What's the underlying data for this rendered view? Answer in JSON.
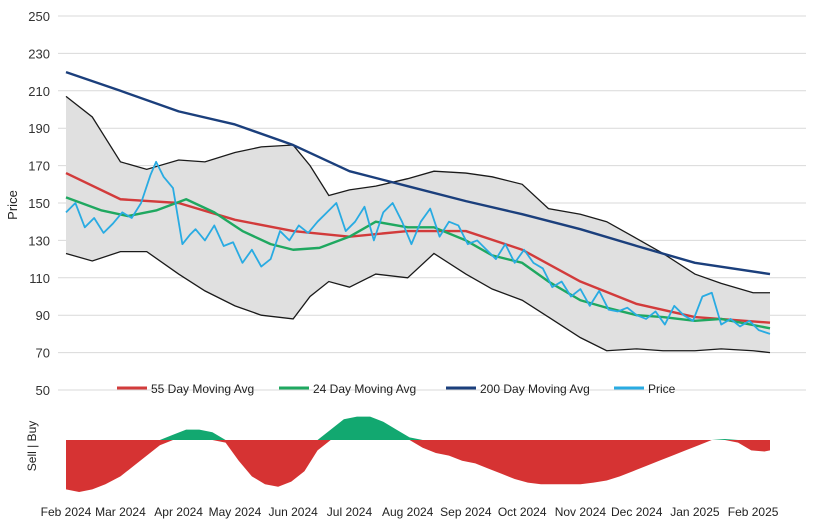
{
  "chart_data": [
    {
      "type": "line",
      "ylabel": "Price",
      "ylim": [
        50,
        250
      ],
      "yticks": [
        50,
        70,
        90,
        110,
        130,
        150,
        170,
        190,
        210,
        230,
        250
      ],
      "x_ticks": [
        "Feb 2024",
        "Mar 2024",
        "Apr 2024",
        "May 2024",
        "Jun 2024",
        "Jul 2024",
        "Aug 2024",
        "Sep 2024",
        "Oct 2024",
        "Nov 2024",
        "Dec 2024",
        "Jan 2025",
        "Feb 2025"
      ],
      "grid": true,
      "legend_position": "bottom",
      "band": {
        "x": [
          "2024-02-01",
          "2024-02-15",
          "2024-03-01",
          "2024-03-15",
          "2024-04-01",
          "2024-04-15",
          "2024-05-01",
          "2024-05-15",
          "2024-06-01",
          "2024-06-10",
          "2024-06-20",
          "2024-07-01",
          "2024-07-15",
          "2024-08-01",
          "2024-08-15",
          "2024-09-01",
          "2024-09-15",
          "2024-10-01",
          "2024-10-15",
          "2024-11-01",
          "2024-11-15",
          "2024-12-01",
          "2024-12-15",
          "2025-01-01",
          "2025-01-15",
          "2025-02-01",
          "2025-02-10"
        ],
        "upper": [
          207,
          196,
          172,
          168,
          173,
          172,
          177,
          180,
          181,
          170,
          154,
          157,
          159,
          163,
          167,
          166,
          164,
          160,
          147,
          144,
          140,
          131,
          123,
          112,
          107,
          102,
          102
        ],
        "lower": [
          123,
          119,
          124,
          124,
          112,
          103,
          95,
          90,
          88,
          100,
          108,
          105,
          112,
          110,
          123,
          112,
          104,
          98,
          89,
          78,
          71,
          72,
          71,
          71,
          72,
          71,
          70
        ]
      },
      "series": [
        {
          "name": "55 Day Moving Avg",
          "color": "#d23b3b",
          "x": [
            "2024-02-01",
            "2024-03-01",
            "2024-04-01",
            "2024-05-01",
            "2024-06-01",
            "2024-07-01",
            "2024-08-01",
            "2024-09-01",
            "2024-10-01",
            "2024-11-01",
            "2024-12-01",
            "2025-01-01",
            "2025-02-10"
          ],
          "y": [
            166,
            152,
            150,
            141,
            135,
            132,
            135,
            135,
            125,
            108,
            96,
            89,
            86
          ]
        },
        {
          "name": "24 Day Moving Avg",
          "color": "#1fa860",
          "x": [
            "2024-02-01",
            "2024-02-20",
            "2024-03-05",
            "2024-03-20",
            "2024-04-05",
            "2024-04-20",
            "2024-05-05",
            "2024-05-20",
            "2024-06-01",
            "2024-06-15",
            "2024-07-01",
            "2024-07-15",
            "2024-08-01",
            "2024-08-15",
            "2024-09-01",
            "2024-09-15",
            "2024-10-01",
            "2024-10-15",
            "2024-11-01",
            "2024-11-15",
            "2024-12-01",
            "2024-12-15",
            "2025-01-01",
            "2025-01-15",
            "2025-02-10"
          ],
          "y": [
            153,
            146,
            143,
            146,
            152,
            145,
            135,
            128,
            125,
            126,
            132,
            140,
            137,
            137,
            130,
            122,
            118,
            108,
            98,
            94,
            90,
            89,
            87,
            88,
            83
          ]
        },
        {
          "name": "200 Day Moving Avg",
          "color": "#1b3f7c",
          "x": [
            "2024-02-01",
            "2024-03-01",
            "2024-04-01",
            "2024-05-01",
            "2024-06-01",
            "2024-07-01",
            "2024-08-01",
            "2024-09-01",
            "2024-10-01",
            "2024-11-01",
            "2024-12-01",
            "2025-01-01",
            "2025-02-10"
          ],
          "y": [
            220,
            210,
            199,
            192,
            181,
            167,
            159,
            151,
            144,
            136,
            127,
            118,
            112
          ]
        },
        {
          "name": "Price",
          "color": "#29abe2",
          "x": [
            "2024-02-01",
            "2024-02-06",
            "2024-02-11",
            "2024-02-16",
            "2024-02-21",
            "2024-02-26",
            "2024-03-02",
            "2024-03-07",
            "2024-03-12",
            "2024-03-17",
            "2024-03-20",
            "2024-03-24",
            "2024-03-29",
            "2024-04-03",
            "2024-04-07",
            "2024-04-10",
            "2024-04-15",
            "2024-04-20",
            "2024-04-25",
            "2024-04-30",
            "2024-05-05",
            "2024-05-10",
            "2024-05-15",
            "2024-05-20",
            "2024-05-25",
            "2024-05-30",
            "2024-06-04",
            "2024-06-09",
            "2024-06-14",
            "2024-06-19",
            "2024-06-24",
            "2024-06-29",
            "2024-07-04",
            "2024-07-09",
            "2024-07-14",
            "2024-07-19",
            "2024-07-24",
            "2024-07-29",
            "2024-08-03",
            "2024-08-08",
            "2024-08-13",
            "2024-08-18",
            "2024-08-23",
            "2024-08-28",
            "2024-09-02",
            "2024-09-07",
            "2024-09-12",
            "2024-09-17",
            "2024-09-22",
            "2024-09-27",
            "2024-10-02",
            "2024-10-07",
            "2024-10-12",
            "2024-10-17",
            "2024-10-22",
            "2024-10-27",
            "2024-11-01",
            "2024-11-06",
            "2024-11-11",
            "2024-11-16",
            "2024-11-21",
            "2024-11-26",
            "2024-12-01",
            "2024-12-06",
            "2024-12-11",
            "2024-12-16",
            "2024-12-21",
            "2024-12-26",
            "2024-12-31",
            "2025-01-05",
            "2025-01-10",
            "2025-01-15",
            "2025-01-20",
            "2025-01-25",
            "2025-01-30",
            "2025-02-04",
            "2025-02-10"
          ],
          "y": [
            145,
            150,
            137,
            142,
            134,
            139,
            145,
            142,
            150,
            165,
            172,
            164,
            158,
            128,
            133,
            136,
            130,
            138,
            127,
            129,
            118,
            125,
            116,
            120,
            135,
            130,
            138,
            134,
            140,
            145,
            150,
            135,
            140,
            148,
            130,
            145,
            150,
            140,
            128,
            140,
            147,
            132,
            140,
            138,
            128,
            130,
            125,
            120,
            128,
            118,
            125,
            118,
            115,
            105,
            108,
            100,
            104,
            95,
            103,
            93,
            92,
            94,
            90,
            88,
            92,
            85,
            95,
            90,
            87,
            100,
            102,
            85,
            88,
            84,
            87,
            82,
            80
          ]
        }
      ]
    },
    {
      "type": "area",
      "ylabel": "Sell | Buy",
      "x": [
        "2024-02-01",
        "2024-02-08",
        "2024-02-15",
        "2024-02-22",
        "2024-03-01",
        "2024-03-08",
        "2024-03-15",
        "2024-03-22",
        "2024-03-29",
        "2024-04-05",
        "2024-04-12",
        "2024-04-19",
        "2024-04-26",
        "2024-05-03",
        "2024-05-10",
        "2024-05-17",
        "2024-05-24",
        "2024-05-31",
        "2024-06-07",
        "2024-06-14",
        "2024-06-21",
        "2024-06-28",
        "2024-07-05",
        "2024-07-12",
        "2024-07-19",
        "2024-07-26",
        "2024-08-02",
        "2024-08-09",
        "2024-08-16",
        "2024-08-23",
        "2024-08-30",
        "2024-09-06",
        "2024-09-13",
        "2024-09-20",
        "2024-09-27",
        "2024-10-04",
        "2024-10-11",
        "2024-10-18",
        "2024-10-25",
        "2024-11-01",
        "2024-11-08",
        "2024-11-15",
        "2024-11-22",
        "2024-11-29",
        "2024-12-06",
        "2024-12-13",
        "2024-12-20",
        "2024-12-27",
        "2025-01-03",
        "2025-01-10",
        "2025-01-17",
        "2025-01-24",
        "2025-01-31",
        "2025-02-07",
        "2025-02-10"
      ],
      "values": [
        -0.95,
        -1.0,
        -0.95,
        -0.85,
        -0.7,
        -0.5,
        -0.3,
        -0.1,
        0.1,
        0.2,
        0.2,
        0.15,
        -0.05,
        -0.4,
        -0.7,
        -0.85,
        -0.9,
        -0.8,
        -0.6,
        -0.2,
        0.2,
        0.4,
        0.45,
        0.45,
        0.35,
        0.2,
        0.05,
        -0.15,
        -0.25,
        -0.3,
        -0.4,
        -0.45,
        -0.55,
        -0.65,
        -0.75,
        -0.82,
        -0.85,
        -0.85,
        -0.85,
        -0.85,
        -0.82,
        -0.78,
        -0.7,
        -0.6,
        -0.5,
        -0.4,
        -0.3,
        -0.2,
        -0.1,
        0.0,
        0.02,
        -0.05,
        -0.2,
        -0.22,
        -0.2
      ],
      "colors": {
        "buy": "#12a870",
        "sell": "#d63333"
      }
    }
  ]
}
